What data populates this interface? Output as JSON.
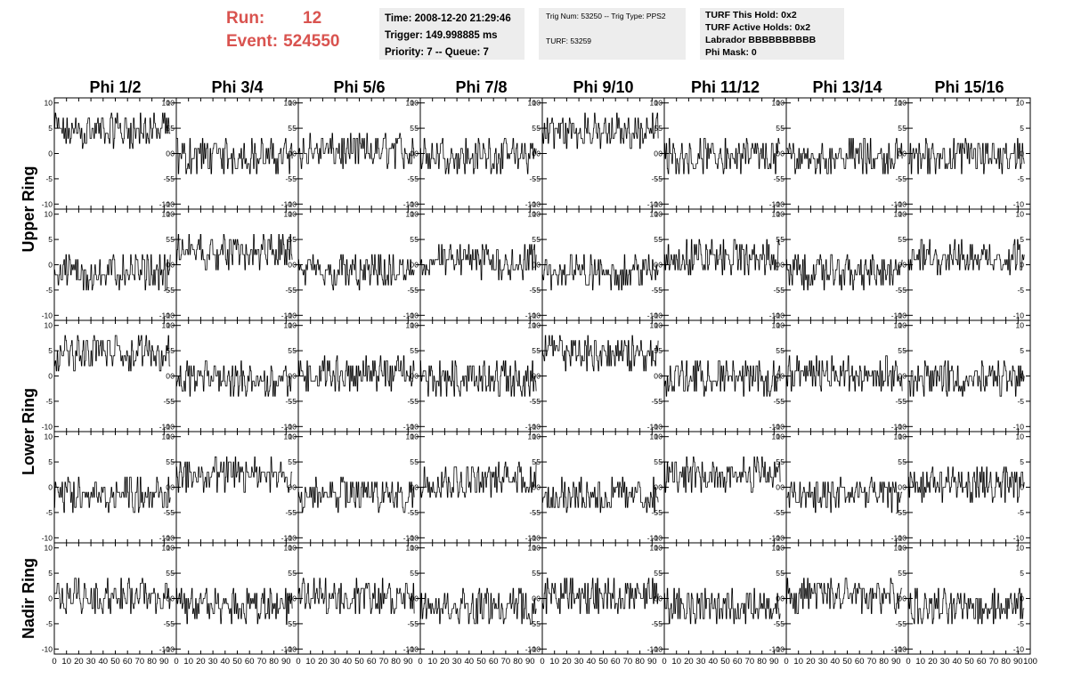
{
  "header": {
    "run_label": "Run:",
    "run_value": "12",
    "event_label": "Event:",
    "event_value": "524550",
    "time": "Time: 2008-12-20 21:29:46",
    "trigger": "Trigger: 149.998885 ms",
    "priority": "Priority: 7 -- Queue: 7",
    "trig_num": "Trig Num: 53250 -- Trig Type: PPS2",
    "turf": "TURF: 53259",
    "turf_this_hold": "TURF This Hold: 0x2",
    "turf_active_holds": "TURF Active Holds: 0x2",
    "labrador": "Labrador BBBBBBBBBB",
    "phi_mask": "Phi Mask: 0"
  },
  "colors": {
    "accent": "#d9534f",
    "box_bg": "#ededed",
    "trace": "#000000"
  },
  "chart_data": {
    "type": "line",
    "columns": [
      "Phi 1/2",
      "Phi 3/4",
      "Phi 5/6",
      "Phi 7/8",
      "Phi 9/10",
      "Phi 11/12",
      "Phi 13/14",
      "Phi 15/16"
    ],
    "ring_labels": [
      "Upper Ring",
      "Lower Ring",
      "Nadir Ring"
    ],
    "ring_row_spans": [
      [
        0,
        1
      ],
      [
        2,
        3
      ],
      [
        4,
        4
      ]
    ],
    "rows": 5,
    "xlim": [
      0,
      100
    ],
    "ylim": [
      -11,
      11
    ],
    "x_ticks": [
      0,
      10,
      20,
      30,
      40,
      50,
      60,
      70,
      80,
      90,
      100
    ],
    "y_ticks": [
      10,
      5,
      0,
      -5,
      -10
    ],
    "series_x_range": [
      0,
      95
    ],
    "baselines": [
      [
        6,
        1,
        2,
        1,
        6,
        1,
        1,
        1
      ],
      [
        0,
        4,
        0,
        2,
        0,
        3,
        0,
        3
      ],
      [
        6,
        1,
        2,
        1,
        6,
        1,
        2,
        1
      ],
      [
        0,
        4,
        0,
        3,
        0,
        4,
        0,
        2
      ],
      [
        2,
        0,
        2,
        0,
        2,
        0,
        2,
        0
      ]
    ],
    "amplitude": 3
  }
}
